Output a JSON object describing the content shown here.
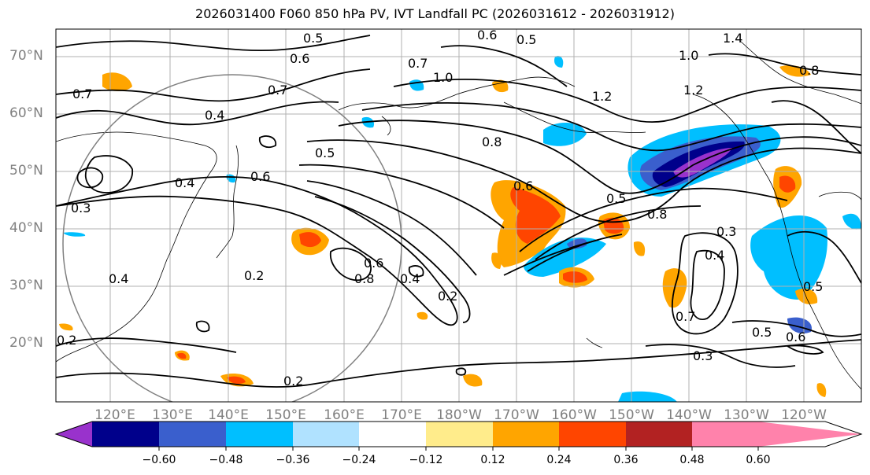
{
  "title": "2026031400 F060 850 hPa PV, IVT Landfall PC (2026031612 - 2026031912)",
  "lat_labels": [
    "70°N",
    "60°N",
    "50°N",
    "40°N",
    "30°N",
    "20°N"
  ],
  "lon_labels": [
    "120°E",
    "130°E",
    "140°E",
    "150°E",
    "160°E",
    "170°E",
    "180°W",
    "170°W",
    "160°W",
    "150°W",
    "140°W",
    "130°W",
    "120°W"
  ],
  "colorbar": {
    "colors": [
      "#9932cc",
      "#00008b",
      "#3a5fcd",
      "#00bfff",
      "#b0e2ff",
      "#ffffff",
      "#ffec8b",
      "#ffa500",
      "#ff4500",
      "#b22222",
      "#ff82ab"
    ],
    "ticks": [
      "−0.60",
      "−0.48",
      "−0.36",
      "−0.24",
      "−0.12",
      "0.12",
      "0.24",
      "0.36",
      "0.48",
      "0.60"
    ]
  },
  "contour_labels": [
    "0.5",
    "0.6",
    "0.5",
    "1.4",
    "1.0",
    "0.8",
    "0.6",
    "0.7",
    "1.0",
    "0.7",
    "1.2",
    "1.2",
    "0.4",
    "0.5",
    "0.8",
    "0.4",
    "0.6",
    "0.5",
    "0.6",
    "0.8",
    "0.2",
    "0.4",
    "0.2",
    "0.6",
    "0.8",
    "0.7",
    "0.3",
    "0.4",
    "0.5",
    "0.6",
    "0.3",
    "0.2",
    "0.2",
    "0.7",
    "0.3",
    "0.4",
    "0.5"
  ]
}
